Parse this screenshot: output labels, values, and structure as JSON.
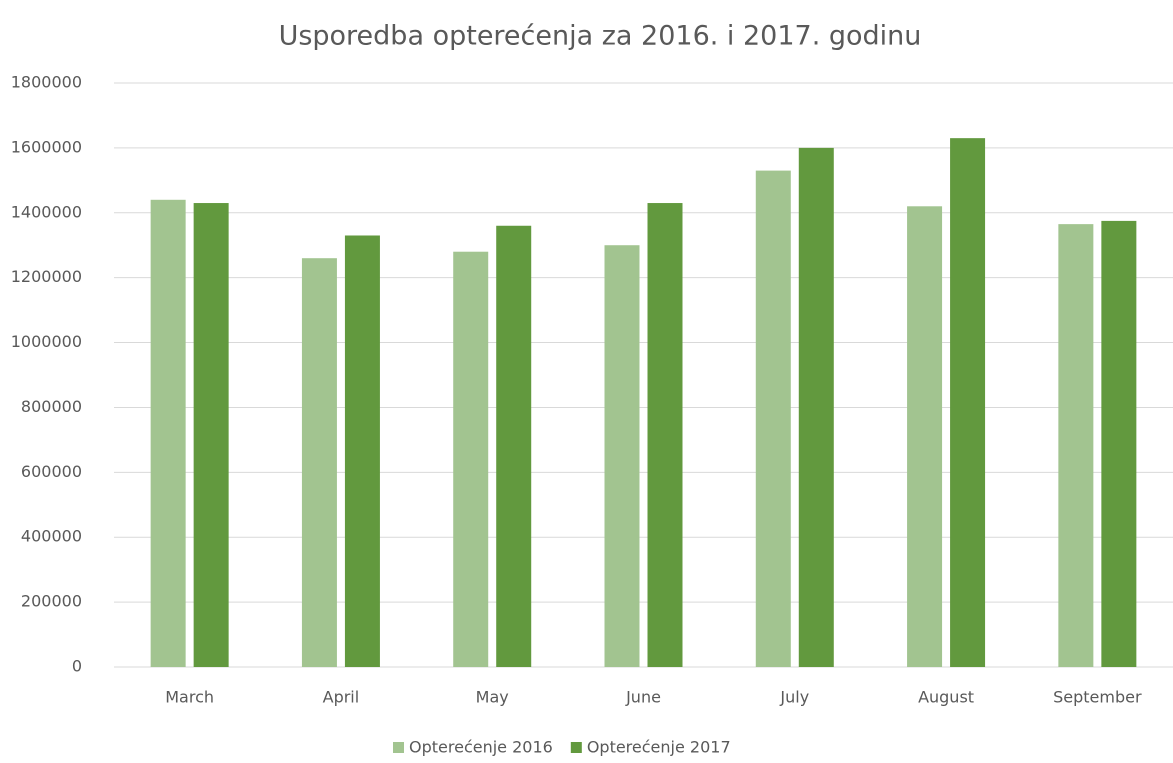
{
  "chart_data": {
    "type": "bar",
    "title": "Usporedba opterećenja za 2016. i 2017. godinu",
    "categories": [
      "March",
      "April",
      "May",
      "June",
      "July",
      "August",
      "September"
    ],
    "series": [
      {
        "name": "Opterećenje 2016",
        "color": "#a2c490",
        "values": [
          1440000,
          1260000,
          1280000,
          1300000,
          1530000,
          1420000,
          1365000
        ]
      },
      {
        "name": "Opterećenje 2017",
        "color": "#62993e",
        "values": [
          1430000,
          1330000,
          1360000,
          1430000,
          1600000,
          1630000,
          1375000
        ]
      }
    ],
    "ylim": [
      0,
      1800000
    ],
    "yticks": [
      0,
      200000,
      400000,
      600000,
      800000,
      1000000,
      1200000,
      1400000,
      1600000,
      1800000
    ],
    "grid": true,
    "legend": "bottom"
  }
}
